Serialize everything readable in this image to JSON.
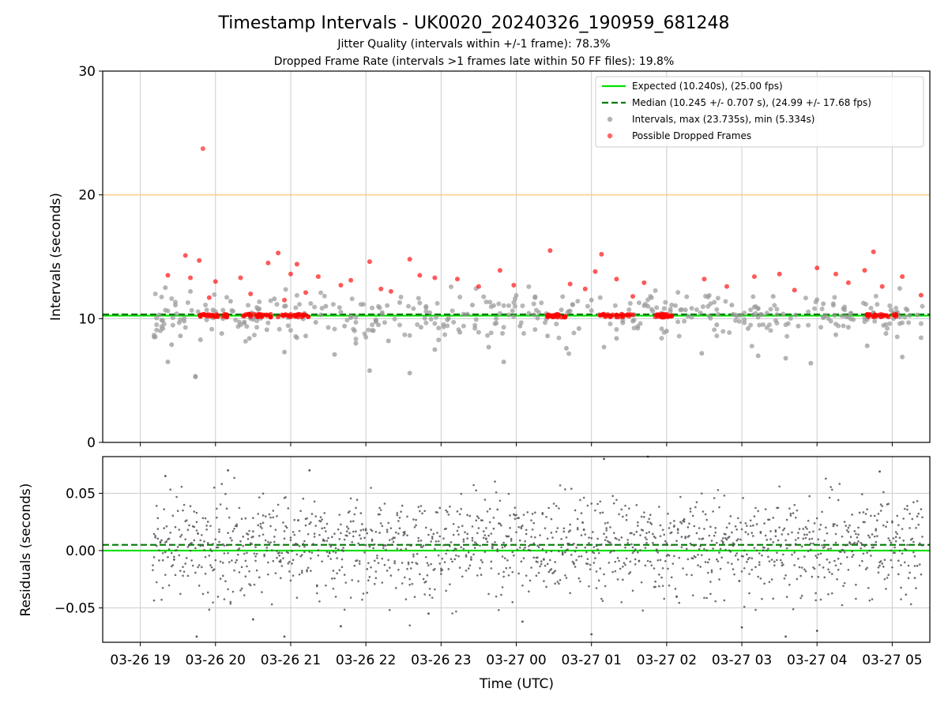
{
  "title": "Timestamp Intervals - UK0020_20240326_190959_681248",
  "subtitle1": "Jitter Quality (intervals within +/-1 frame): 78.3%",
  "subtitle2": "Dropped Frame Rate (intervals >1 frames late within 50 FF files): 19.8%",
  "colors": {
    "expected": "#00e000",
    "median": "#007a00",
    "intervals": "#999999",
    "dropped": "#ff0000",
    "residuals": "#555555",
    "threshold": "#ffc46b",
    "grid": "#cccccc"
  },
  "chart_data": [
    {
      "type": "scatter",
      "ylabel": "Intervals (seconds)",
      "ylim": [
        0,
        30
      ],
      "yticks": [
        "0",
        "10",
        "20",
        "30"
      ],
      "ytick_values": [
        0,
        10,
        20,
        30
      ],
      "grid": true,
      "legend_position": "top-right",
      "lines": {
        "expected": 10.24,
        "median": 10.245,
        "threshold": 20.0
      },
      "legend": [
        {
          "label": "Expected (10.240s), (25.00 fps)",
          "style": "solid-line",
          "color_key": "expected"
        },
        {
          "label": "Median (10.245 +/- 0.707 s), (24.99 +/- 17.68 fps)",
          "style": "dashed-line",
          "color_key": "median"
        },
        {
          "label": "Intervals, max (23.735s), min (5.334s)",
          "style": "dot",
          "color_key": "intervals"
        },
        {
          "label": "Possible Dropped Frames",
          "style": "dot",
          "color_key": "dropped"
        }
      ],
      "stats": {
        "max": 23.735,
        "min": 5.334
      },
      "series": [
        {
          "name": "Intervals, max (23.735s), min (5.334s)",
          "points": [
            [
              "2024-03-26T19:15",
              10.3
            ],
            [
              "2024-03-26T19:18",
              9.2
            ],
            [
              "2024-03-26T19:20",
              12.5
            ],
            [
              "2024-03-26T19:22",
              6.5
            ],
            [
              "2024-03-26T19:25",
              7.9
            ],
            [
              "2024-03-26T19:28",
              11.1
            ],
            [
              "2024-03-26T19:32",
              8.6
            ],
            [
              "2024-03-26T19:35",
              9.8
            ],
            [
              "2024-03-26T19:40",
              12.2
            ],
            [
              "2024-03-26T19:44",
              5.3
            ],
            [
              "2024-03-26T19:48",
              8.3
            ],
            [
              "2024-03-26T19:53",
              9.9
            ],
            [
              "2024-03-26T19:58",
              10.7
            ],
            [
              "2024-03-26T20:05",
              8.8
            ],
            [
              "2024-03-26T20:12",
              11.4
            ],
            [
              "2024-03-26T20:20",
              9.5
            ],
            [
              "2024-03-26T20:27",
              8.4
            ],
            [
              "2024-03-26T20:33",
              10.9
            ],
            [
              "2024-03-26T20:41",
              9.1
            ],
            [
              "2024-03-26T20:47",
              11.6
            ],
            [
              "2024-03-26T20:55",
              7.3
            ],
            [
              "2024-03-26T21:03",
              10.2
            ],
            [
              "2024-03-26T21:12",
              8.6
            ],
            [
              "2024-03-26T21:20",
              9.7
            ],
            [
              "2024-03-26T21:28",
              11.0
            ],
            [
              "2024-03-26T21:35",
              7.1
            ],
            [
              "2024-03-26T21:43",
              9.4
            ],
            [
              "2024-03-26T21:52",
              8.0
            ],
            [
              "2024-03-26T22:03",
              5.8
            ],
            [
              "2024-03-26T22:10",
              9.5
            ],
            [
              "2024-03-26T22:18",
              8.2
            ],
            [
              "2024-03-26T22:27",
              11.3
            ],
            [
              "2024-03-26T22:35",
              5.6
            ],
            [
              "2024-03-26T22:44",
              9.3
            ],
            [
              "2024-03-26T22:55",
              7.5
            ],
            [
              "2024-03-26T23:05",
              9.9
            ],
            [
              "2024-03-26T23:15",
              8.9
            ],
            [
              "2024-03-26T23:25",
              11.1
            ],
            [
              "2024-03-26T23:38",
              7.7
            ],
            [
              "2024-03-26T23:50",
              6.5
            ],
            [
              "2024-03-27T00:03",
              9.4
            ],
            [
              "2024-03-27T00:15",
              11.7
            ],
            [
              "2024-03-27T00:25",
              8.6
            ],
            [
              "2024-03-27T00:40",
              7.6
            ],
            [
              "2024-03-27T00:50",
              9.2
            ],
            [
              "2024-03-27T01:00",
              11.5
            ],
            [
              "2024-03-27T01:10",
              7.7
            ],
            [
              "2024-03-27T01:20",
              8.4
            ],
            [
              "2024-03-27T01:33",
              9.8
            ],
            [
              "2024-03-27T01:45",
              11.0
            ],
            [
              "2024-03-27T02:00",
              9.0
            ],
            [
              "2024-03-27T02:15",
              10.7
            ],
            [
              "2024-03-27T02:28",
              7.2
            ],
            [
              "2024-03-27T02:40",
              9.5
            ],
            [
              "2024-03-27T02:52",
              11.1
            ],
            [
              "2024-03-27T03:05",
              9.2
            ],
            [
              "2024-03-27T03:13",
              7.0
            ],
            [
              "2024-03-27T03:25",
              11.8
            ],
            [
              "2024-03-27T03:35",
              6.8
            ],
            [
              "2024-03-27T03:45",
              9.4
            ],
            [
              "2024-03-27T03:55",
              6.4
            ],
            [
              "2024-03-27T04:05",
              11.2
            ],
            [
              "2024-03-27T04:15",
              8.7
            ],
            [
              "2024-03-27T04:25",
              9.3
            ],
            [
              "2024-03-27T04:40",
              7.8
            ],
            [
              "2024-03-27T04:55",
              8.8
            ],
            [
              "2024-03-27T05:08",
              6.9
            ],
            [
              "2024-03-27T05:20",
              10.3
            ]
          ]
        },
        {
          "name": "Possible Dropped Frames",
          "points": [
            [
              "2024-03-26T19:22",
              13.5
            ],
            [
              "2024-03-26T19:36",
              15.1
            ],
            [
              "2024-03-26T19:40",
              13.3
            ],
            [
              "2024-03-26T19:47",
              14.7
            ],
            [
              "2024-03-26T19:55",
              11.7
            ],
            [
              "2024-03-26T20:00",
              13.0
            ],
            [
              "2024-03-26T20:20",
              13.3
            ],
            [
              "2024-03-26T20:28",
              12.0
            ],
            [
              "2024-03-26T20:42",
              14.5
            ],
            [
              "2024-03-26T20:50",
              15.3
            ],
            [
              "2024-03-26T20:55",
              11.5
            ],
            [
              "2024-03-26T21:00",
              13.6
            ],
            [
              "2024-03-26T21:05",
              14.4
            ],
            [
              "2024-03-26T21:12",
              12.1
            ],
            [
              "2024-03-26T21:22",
              13.4
            ],
            [
              "2024-03-26T21:40",
              12.7
            ],
            [
              "2024-03-26T21:48",
              13.1
            ],
            [
              "2024-03-26T22:03",
              14.6
            ],
            [
              "2024-03-26T22:12",
              12.4
            ],
            [
              "2024-03-26T22:20",
              12.2
            ],
            [
              "2024-03-26T22:35",
              14.8
            ],
            [
              "2024-03-26T22:43",
              13.5
            ],
            [
              "2024-03-26T22:55",
              13.3
            ],
            [
              "2024-03-26T23:13",
              13.2
            ],
            [
              "2024-03-26T23:30",
              12.6
            ],
            [
              "2024-03-26T23:47",
              13.9
            ],
            [
              "2024-03-26T23:58",
              12.7
            ],
            [
              "2024-03-27T00:27",
              15.5
            ],
            [
              "2024-03-27T00:43",
              12.8
            ],
            [
              "2024-03-27T00:55",
              12.4
            ],
            [
              "2024-03-27T01:03",
              13.8
            ],
            [
              "2024-03-27T01:08",
              15.2
            ],
            [
              "2024-03-27T01:20",
              13.2
            ],
            [
              "2024-03-27T01:33",
              11.8
            ],
            [
              "2024-03-27T01:42",
              12.9
            ],
            [
              "2024-03-27T02:30",
              13.2
            ],
            [
              "2024-03-27T02:48",
              12.6
            ],
            [
              "2024-03-27T03:10",
              13.4
            ],
            [
              "2024-03-27T03:30",
              13.6
            ],
            [
              "2024-03-27T03:42",
              12.3
            ],
            [
              "2024-03-27T04:00",
              14.1
            ],
            [
              "2024-03-27T04:15",
              13.6
            ],
            [
              "2024-03-27T04:25",
              12.9
            ],
            [
              "2024-03-27T04:38",
              13.9
            ],
            [
              "2024-03-27T04:45",
              15.4
            ],
            [
              "2024-03-27T04:52",
              12.6
            ],
            [
              "2024-03-27T05:08",
              13.4
            ],
            [
              "2024-03-27T05:23",
              11.9
            ]
          ]
        }
      ]
    },
    {
      "type": "scatter",
      "xlabel": "Time (UTC)",
      "ylabel": "Residuals (seconds)",
      "ylim": [
        -0.08,
        0.082
      ],
      "yticks": [
        "−0.05",
        "0.00",
        "0.05"
      ],
      "ytick_values": [
        -0.05,
        0.0,
        0.05
      ],
      "xticks": [
        "03-26 19",
        "03-26 20",
        "03-26 21",
        "03-26 22",
        "03-26 23",
        "03-27 00",
        "03-27 01",
        "03-27 02",
        "03-27 03",
        "03-27 04",
        "03-27 05"
      ],
      "xlim": [
        "2024-03-26T18:30",
        "2024-03-27T05:30"
      ],
      "grid": true,
      "lines": {
        "expected": 0.0,
        "median": 0.005
      },
      "series": [
        {
          "name": "Residuals",
          "points": [
            [
              "2024-03-26T19:20",
              0.065
            ],
            [
              "2024-03-26T19:45",
              -0.075
            ],
            [
              "2024-03-26T20:10",
              0.07
            ],
            [
              "2024-03-26T20:30",
              -0.06
            ],
            [
              "2024-03-26T20:55",
              -0.075
            ],
            [
              "2024-03-26T21:15",
              0.07
            ],
            [
              "2024-03-26T21:40",
              -0.066
            ],
            [
              "2024-03-26T22:50",
              -0.055
            ],
            [
              "2024-03-27T00:05",
              -0.062
            ],
            [
              "2024-03-27T01:00",
              -0.073
            ],
            [
              "2024-03-27T01:10",
              0.08
            ],
            [
              "2024-03-27T01:45",
              0.082
            ],
            [
              "2024-03-27T03:00",
              -0.067
            ],
            [
              "2024-03-27T03:35",
              -0.075
            ],
            [
              "2024-03-27T04:00",
              -0.07
            ],
            [
              "2024-03-27T04:50",
              0.069
            ]
          ]
        }
      ]
    }
  ]
}
